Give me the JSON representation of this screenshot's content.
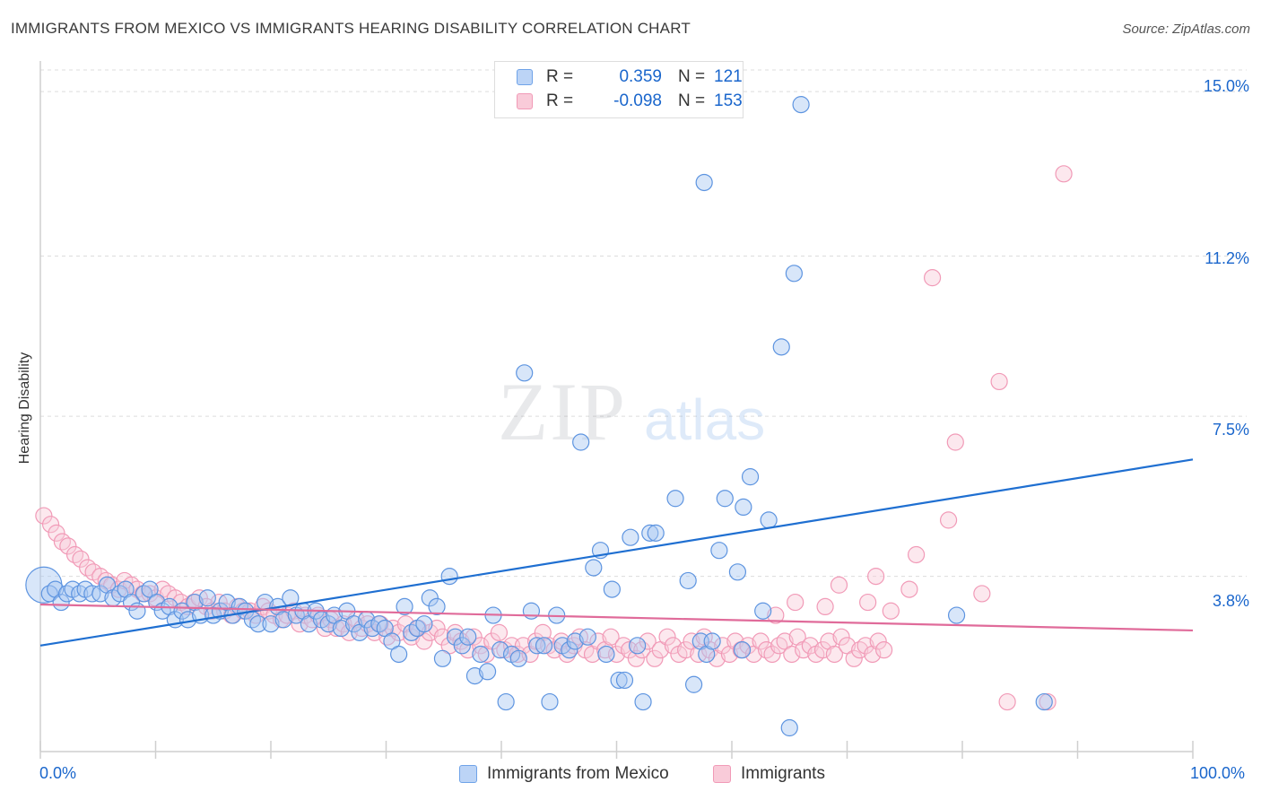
{
  "title": "IMMIGRANTS FROM MEXICO VS IMMIGRANTS HEARING DISABILITY CORRELATION CHART",
  "source": "Source: ZipAtlas.com",
  "watermark": {
    "zip": "ZIP",
    "atlas": "atlas"
  },
  "legend": {
    "rows": [
      {
        "r_label": "R =",
        "r_value": "0.359",
        "n_label": "N =",
        "n_value": "121"
      },
      {
        "r_label": "R =",
        "r_value": "-0.098",
        "n_label": "N =",
        "n_value": "153"
      }
    ]
  },
  "bottom_legend": [
    "Immigrants from Mexico",
    "Immigrants"
  ],
  "x_tick_labels": [
    "0.0%",
    "100.0%"
  ],
  "y_tick_labels": [
    "15.0%",
    "11.2%",
    "7.5%",
    "3.8%"
  ],
  "chart_data": {
    "type": "scatter",
    "title": "IMMIGRANTS FROM MEXICO VS IMMIGRANTS HEARING DISABILITY CORRELATION CHART",
    "xlabel": "",
    "ylabel": "Hearing Disability",
    "xlim": [
      0,
      100
    ],
    "ylim": [
      0,
      15.5
    ],
    "y_ticks": [
      3.8,
      7.5,
      11.2,
      15.0
    ],
    "grid": true,
    "colors": {
      "series1": "#6fa3e8",
      "series2": "#f19ab7",
      "line1": "#1f6fd1",
      "line2": "#e06b9a"
    },
    "series": [
      {
        "name": "Immigrants from Mexico",
        "color": "#6fa3e8",
        "trend": {
          "x": [
            0,
            100
          ],
          "y": [
            2.2,
            6.5
          ]
        },
        "points": [
          [
            0.3,
            3.6
          ],
          [
            0.8,
            3.4
          ],
          [
            1.3,
            3.5
          ],
          [
            1.8,
            3.2
          ],
          [
            2.3,
            3.4
          ],
          [
            2.8,
            3.5
          ],
          [
            3.4,
            3.4
          ],
          [
            3.9,
            3.5
          ],
          [
            4.5,
            3.4
          ],
          [
            5.2,
            3.4
          ],
          [
            5.8,
            3.6
          ],
          [
            6.3,
            3.3
          ],
          [
            6.9,
            3.4
          ],
          [
            7.4,
            3.5
          ],
          [
            7.9,
            3.2
          ],
          [
            8.4,
            3.0
          ],
          [
            9.0,
            3.4
          ],
          [
            9.5,
            3.5
          ],
          [
            10.1,
            3.2
          ],
          [
            10.6,
            3.0
          ],
          [
            11.2,
            3.1
          ],
          [
            11.7,
            2.8
          ],
          [
            12.3,
            3.0
          ],
          [
            12.8,
            2.8
          ],
          [
            13.4,
            3.2
          ],
          [
            13.9,
            2.9
          ],
          [
            14.5,
            3.3
          ],
          [
            15.0,
            2.9
          ],
          [
            15.6,
            3.0
          ],
          [
            16.2,
            3.2
          ],
          [
            16.7,
            2.9
          ],
          [
            17.3,
            3.1
          ],
          [
            17.8,
            3.0
          ],
          [
            18.4,
            2.8
          ],
          [
            18.9,
            2.7
          ],
          [
            19.5,
            3.2
          ],
          [
            20.0,
            2.7
          ],
          [
            20.6,
            3.1
          ],
          [
            21.1,
            2.8
          ],
          [
            21.7,
            3.3
          ],
          [
            22.2,
            2.9
          ],
          [
            22.8,
            3.0
          ],
          [
            23.3,
            2.7
          ],
          [
            23.9,
            3.0
          ],
          [
            24.4,
            2.8
          ],
          [
            25.0,
            2.7
          ],
          [
            25.5,
            2.9
          ],
          [
            26.1,
            2.6
          ],
          [
            26.6,
            3.0
          ],
          [
            27.2,
            2.7
          ],
          [
            27.7,
            2.5
          ],
          [
            28.3,
            2.8
          ],
          [
            28.8,
            2.6
          ],
          [
            29.4,
            2.7
          ],
          [
            29.9,
            2.6
          ],
          [
            30.5,
            2.3
          ],
          [
            31.1,
            2.0
          ],
          [
            31.6,
            3.1
          ],
          [
            32.2,
            2.5
          ],
          [
            32.7,
            2.6
          ],
          [
            33.3,
            2.7
          ],
          [
            33.8,
            3.3
          ],
          [
            34.4,
            3.1
          ],
          [
            34.9,
            1.9
          ],
          [
            35.5,
            3.8
          ],
          [
            36.0,
            2.4
          ],
          [
            36.6,
            2.2
          ],
          [
            37.1,
            2.4
          ],
          [
            37.7,
            1.5
          ],
          [
            38.2,
            2.0
          ],
          [
            38.8,
            1.6
          ],
          [
            39.3,
            2.9
          ],
          [
            39.9,
            2.1
          ],
          [
            40.4,
            0.9
          ],
          [
            40.9,
            2.0
          ],
          [
            41.5,
            1.9
          ],
          [
            42.0,
            8.5
          ],
          [
            42.6,
            3.0
          ],
          [
            43.1,
            2.2
          ],
          [
            43.7,
            2.2
          ],
          [
            44.2,
            0.9
          ],
          [
            44.8,
            2.9
          ],
          [
            45.3,
            2.2
          ],
          [
            45.9,
            2.1
          ],
          [
            46.4,
            2.3
          ],
          [
            46.9,
            6.9
          ],
          [
            47.5,
            2.4
          ],
          [
            48.0,
            4.0
          ],
          [
            48.6,
            4.4
          ],
          [
            49.1,
            2.0
          ],
          [
            49.6,
            3.5
          ],
          [
            50.2,
            1.4
          ],
          [
            50.7,
            1.4
          ],
          [
            51.2,
            4.7
          ],
          [
            51.8,
            2.2
          ],
          [
            52.3,
            0.9
          ],
          [
            52.9,
            4.8
          ],
          [
            53.4,
            4.8
          ],
          [
            55.1,
            5.6
          ],
          [
            56.2,
            3.7
          ],
          [
            56.7,
            1.3
          ],
          [
            57.3,
            2.3
          ],
          [
            57.8,
            2.0
          ],
          [
            58.3,
            2.3
          ],
          [
            58.9,
            4.4
          ],
          [
            59.4,
            5.6
          ],
          [
            60.5,
            3.9
          ],
          [
            61.0,
            5.4
          ],
          [
            61.6,
            6.1
          ],
          [
            57.6,
            12.9
          ],
          [
            60.9,
            2.1
          ],
          [
            62.7,
            3.0
          ],
          [
            63.2,
            5.1
          ],
          [
            64.3,
            9.1
          ],
          [
            65.4,
            10.8
          ],
          [
            65.0,
            0.3
          ],
          [
            66.0,
            14.7
          ],
          [
            79.5,
            2.9
          ],
          [
            87.1,
            0.9
          ]
        ]
      },
      {
        "name": "Immigrants",
        "color": "#f19ab7",
        "trend": {
          "x": [
            0,
            100
          ],
          "y": [
            3.15,
            2.55
          ]
        },
        "points": [
          [
            0.3,
            5.2
          ],
          [
            0.9,
            5.0
          ],
          [
            1.4,
            4.8
          ],
          [
            1.9,
            4.6
          ],
          [
            2.4,
            4.5
          ],
          [
            3.0,
            4.3
          ],
          [
            3.5,
            4.2
          ],
          [
            4.1,
            4.0
          ],
          [
            4.6,
            3.9
          ],
          [
            5.2,
            3.8
          ],
          [
            5.7,
            3.7
          ],
          [
            6.2,
            3.6
          ],
          [
            6.8,
            3.5
          ],
          [
            7.3,
            3.7
          ],
          [
            7.9,
            3.6
          ],
          [
            8.4,
            3.5
          ],
          [
            8.9,
            3.4
          ],
          [
            9.5,
            3.4
          ],
          [
            10.0,
            3.3
          ],
          [
            10.6,
            3.5
          ],
          [
            11.1,
            3.4
          ],
          [
            11.7,
            3.3
          ],
          [
            12.2,
            3.2
          ],
          [
            12.8,
            3.1
          ],
          [
            13.3,
            3.2
          ],
          [
            13.8,
            3.3
          ],
          [
            14.4,
            3.1
          ],
          [
            14.9,
            3.0
          ],
          [
            15.5,
            3.2
          ],
          [
            16.0,
            3.0
          ],
          [
            16.6,
            2.9
          ],
          [
            17.1,
            3.1
          ],
          [
            17.6,
            3.0
          ],
          [
            18.2,
            3.0
          ],
          [
            18.7,
            2.9
          ],
          [
            19.3,
            3.1
          ],
          [
            19.8,
            3.0
          ],
          [
            20.3,
            2.9
          ],
          [
            20.9,
            2.8
          ],
          [
            21.4,
            2.9
          ],
          [
            22.0,
            3.0
          ],
          [
            22.5,
            2.7
          ],
          [
            23.0,
            2.9
          ],
          [
            23.6,
            2.8
          ],
          [
            24.1,
            2.9
          ],
          [
            24.7,
            2.6
          ],
          [
            25.2,
            2.8
          ],
          [
            25.7,
            2.6
          ],
          [
            26.3,
            2.7
          ],
          [
            26.8,
            2.5
          ],
          [
            27.4,
            2.8
          ],
          [
            27.9,
            2.6
          ],
          [
            28.4,
            2.7
          ],
          [
            29.0,
            2.5
          ],
          [
            29.5,
            2.7
          ],
          [
            30.1,
            2.4
          ],
          [
            30.6,
            2.6
          ],
          [
            31.1,
            2.5
          ],
          [
            31.7,
            2.7
          ],
          [
            32.2,
            2.4
          ],
          [
            32.8,
            2.6
          ],
          [
            33.3,
            2.3
          ],
          [
            33.8,
            2.5
          ],
          [
            34.4,
            2.6
          ],
          [
            34.9,
            2.4
          ],
          [
            35.5,
            2.2
          ],
          [
            36.0,
            2.5
          ],
          [
            36.5,
            2.3
          ],
          [
            37.1,
            2.1
          ],
          [
            37.6,
            2.4
          ],
          [
            38.2,
            2.2
          ],
          [
            38.7,
            2.0
          ],
          [
            39.2,
            2.3
          ],
          [
            39.8,
            2.5
          ],
          [
            40.3,
            2.1
          ],
          [
            40.9,
            2.2
          ],
          [
            41.4,
            2.0
          ],
          [
            41.9,
            2.2
          ],
          [
            42.5,
            2.0
          ],
          [
            43.0,
            2.3
          ],
          [
            43.6,
            2.5
          ],
          [
            44.1,
            2.2
          ],
          [
            44.6,
            2.1
          ],
          [
            45.2,
            2.3
          ],
          [
            45.7,
            2.0
          ],
          [
            46.3,
            2.2
          ],
          [
            46.8,
            2.4
          ],
          [
            47.3,
            2.1
          ],
          [
            47.9,
            2.0
          ],
          [
            48.4,
            2.3
          ],
          [
            49.0,
            2.1
          ],
          [
            49.5,
            2.4
          ],
          [
            50.0,
            2.0
          ],
          [
            50.6,
            2.2
          ],
          [
            51.1,
            2.1
          ],
          [
            51.7,
            1.9
          ],
          [
            52.2,
            2.1
          ],
          [
            52.7,
            2.3
          ],
          [
            53.3,
            1.9
          ],
          [
            53.8,
            2.1
          ],
          [
            54.4,
            2.4
          ],
          [
            54.9,
            2.2
          ],
          [
            55.4,
            2.0
          ],
          [
            56.0,
            2.1
          ],
          [
            56.5,
            2.3
          ],
          [
            57.1,
            2.0
          ],
          [
            57.6,
            2.4
          ],
          [
            58.1,
            2.1
          ],
          [
            58.7,
            1.9
          ],
          [
            59.2,
            2.2
          ],
          [
            59.8,
            2.0
          ],
          [
            60.3,
            2.3
          ],
          [
            60.8,
            2.1
          ],
          [
            61.4,
            2.2
          ],
          [
            61.9,
            2.0
          ],
          [
            62.5,
            2.3
          ],
          [
            63.0,
            2.1
          ],
          [
            63.5,
            2.0
          ],
          [
            64.1,
            2.2
          ],
          [
            64.6,
            2.3
          ],
          [
            65.2,
            2.0
          ],
          [
            65.7,
            2.4
          ],
          [
            66.2,
            2.1
          ],
          [
            66.8,
            2.2
          ],
          [
            67.3,
            2.0
          ],
          [
            67.9,
            2.1
          ],
          [
            68.4,
            2.3
          ],
          [
            68.9,
            2.0
          ],
          [
            69.5,
            2.4
          ],
          [
            70.0,
            2.2
          ],
          [
            70.6,
            1.9
          ],
          [
            71.1,
            2.1
          ],
          [
            71.6,
            2.2
          ],
          [
            72.2,
            2.0
          ],
          [
            72.7,
            2.3
          ],
          [
            73.2,
            2.1
          ],
          [
            79.4,
            6.9
          ],
          [
            88.8,
            13.1
          ],
          [
            77.4,
            10.7
          ],
          [
            83.2,
            8.3
          ],
          [
            78.8,
            5.1
          ],
          [
            76.0,
            4.3
          ],
          [
            72.5,
            3.8
          ],
          [
            69.3,
            3.6
          ],
          [
            68.1,
            3.1
          ],
          [
            71.8,
            3.2
          ],
          [
            65.5,
            3.2
          ],
          [
            63.8,
            2.9
          ],
          [
            73.8,
            3.0
          ],
          [
            75.4,
            3.5
          ],
          [
            81.7,
            3.4
          ],
          [
            83.9,
            0.9
          ],
          [
            87.4,
            0.9
          ]
        ]
      }
    ]
  }
}
